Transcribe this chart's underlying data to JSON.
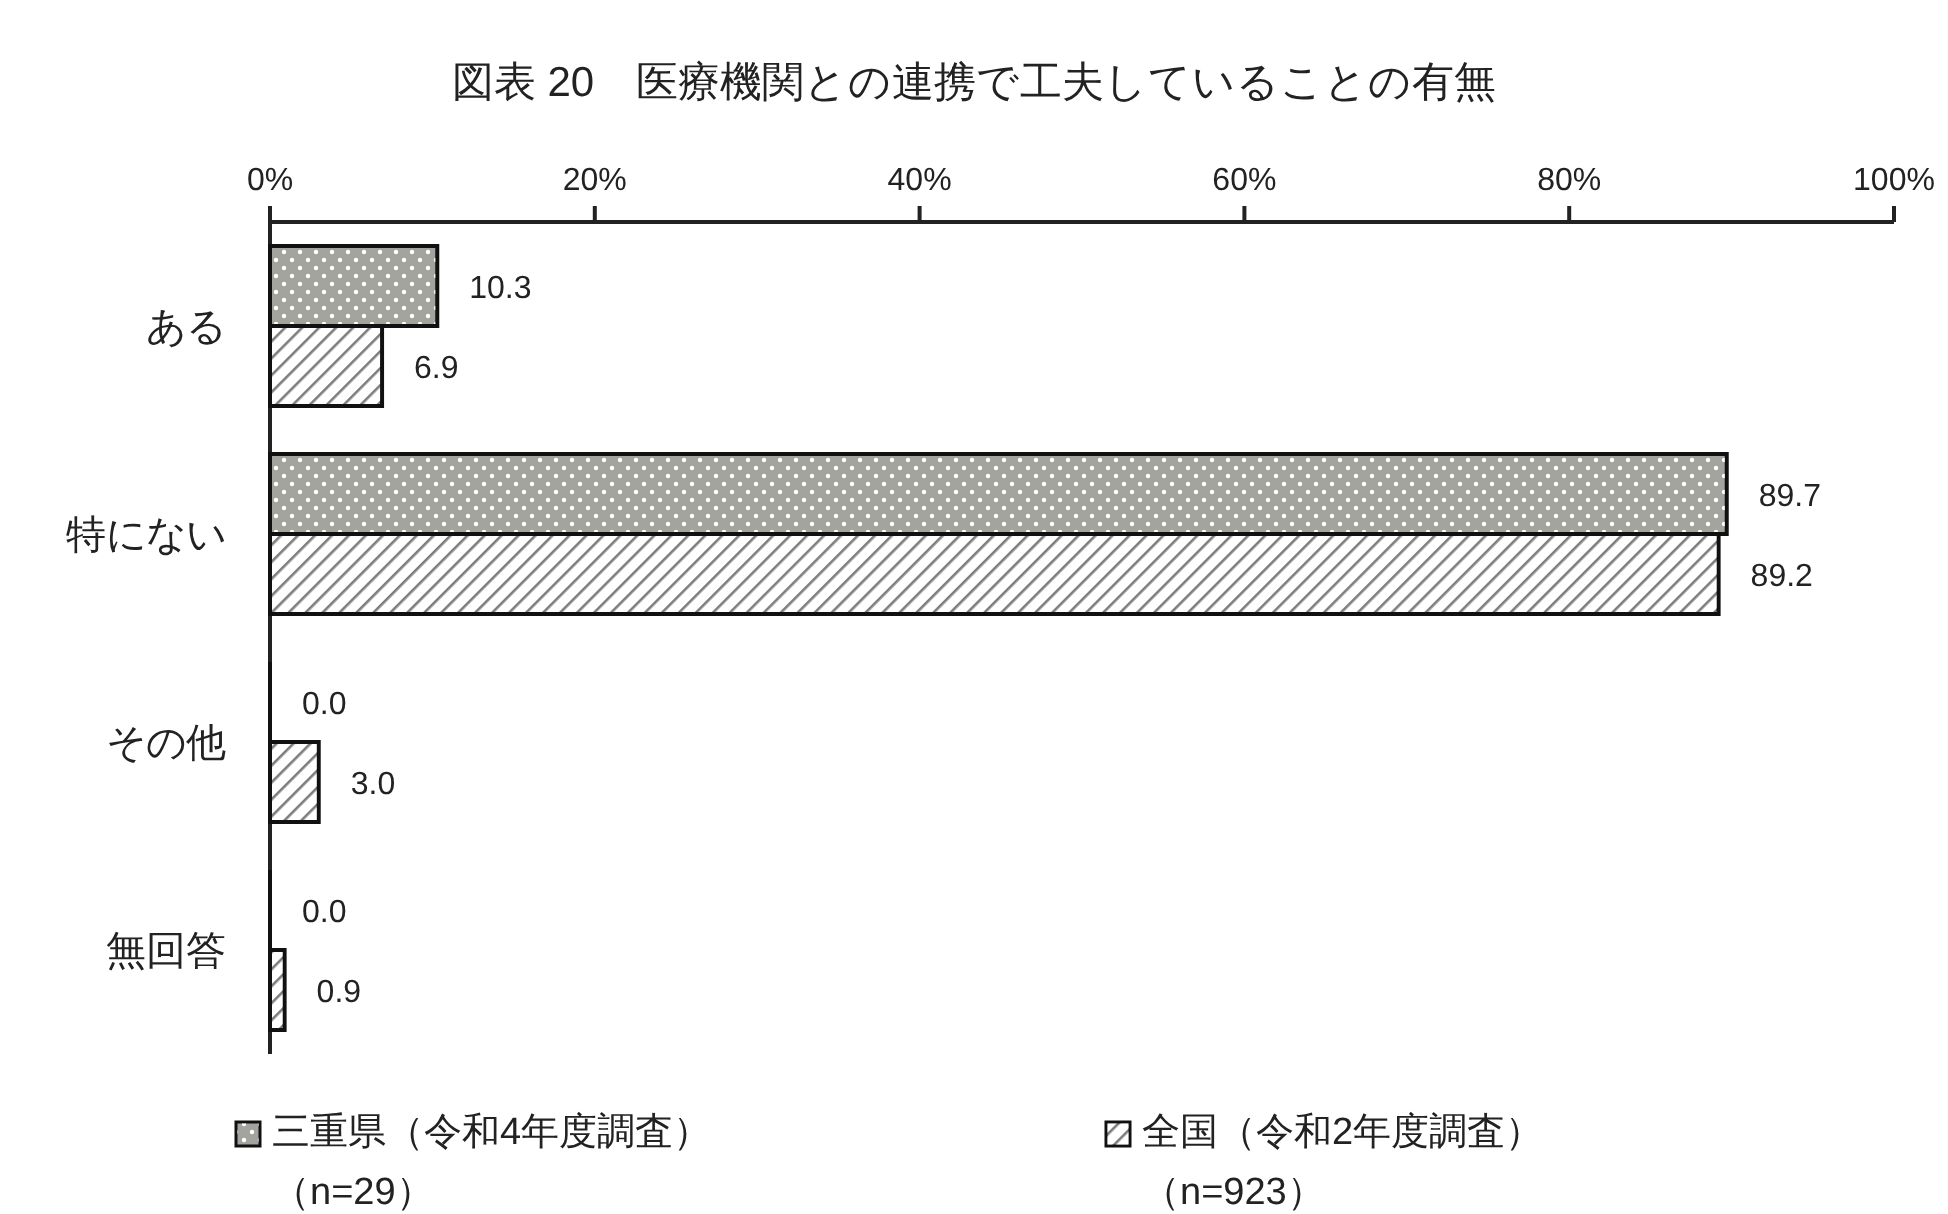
{
  "chart_data": {
    "type": "bar",
    "orientation": "horizontal",
    "title": "図表 20　医療機関との連携で工夫していることの有無",
    "categories": [
      "ある",
      "特にない",
      "その他",
      "無回答"
    ],
    "series": [
      {
        "name": "三重県（令和4年度調査）（n=29）",
        "color": "#a4a49e",
        "values": [
          10.3,
          89.7,
          0.0,
          0.0
        ],
        "value_labels": [
          "10.3",
          "89.7",
          "0.0",
          "0.0"
        ]
      },
      {
        "name": "全国（令和2年度調査）（n=923）",
        "color": "#7d7d7d",
        "values": [
          6.9,
          89.2,
          3.0,
          0.9
        ],
        "value_labels": [
          "6.9",
          "89.2",
          "3.0",
          "0.9"
        ]
      }
    ],
    "xlim": [
      0,
      100
    ],
    "xticks": [
      {
        "value": 0,
        "label": "0%"
      },
      {
        "value": 20,
        "label": "20%"
      },
      {
        "value": 40,
        "label": "40%"
      },
      {
        "value": 60,
        "label": "60%"
      },
      {
        "value": 80,
        "label": "80%"
      },
      {
        "value": 100,
        "label": "100%"
      }
    ],
    "legend": "bottom"
  }
}
